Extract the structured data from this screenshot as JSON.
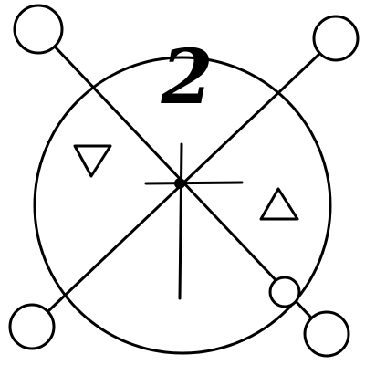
{
  "diagram": {
    "label": "2",
    "colors": {
      "ink": "#000000",
      "background": "#ffffff"
    },
    "symbols": [
      {
        "name": "triangle-down-icon",
        "shape": "downward triangle"
      },
      {
        "name": "triangle-up-icon",
        "shape": "upward triangle"
      }
    ]
  }
}
